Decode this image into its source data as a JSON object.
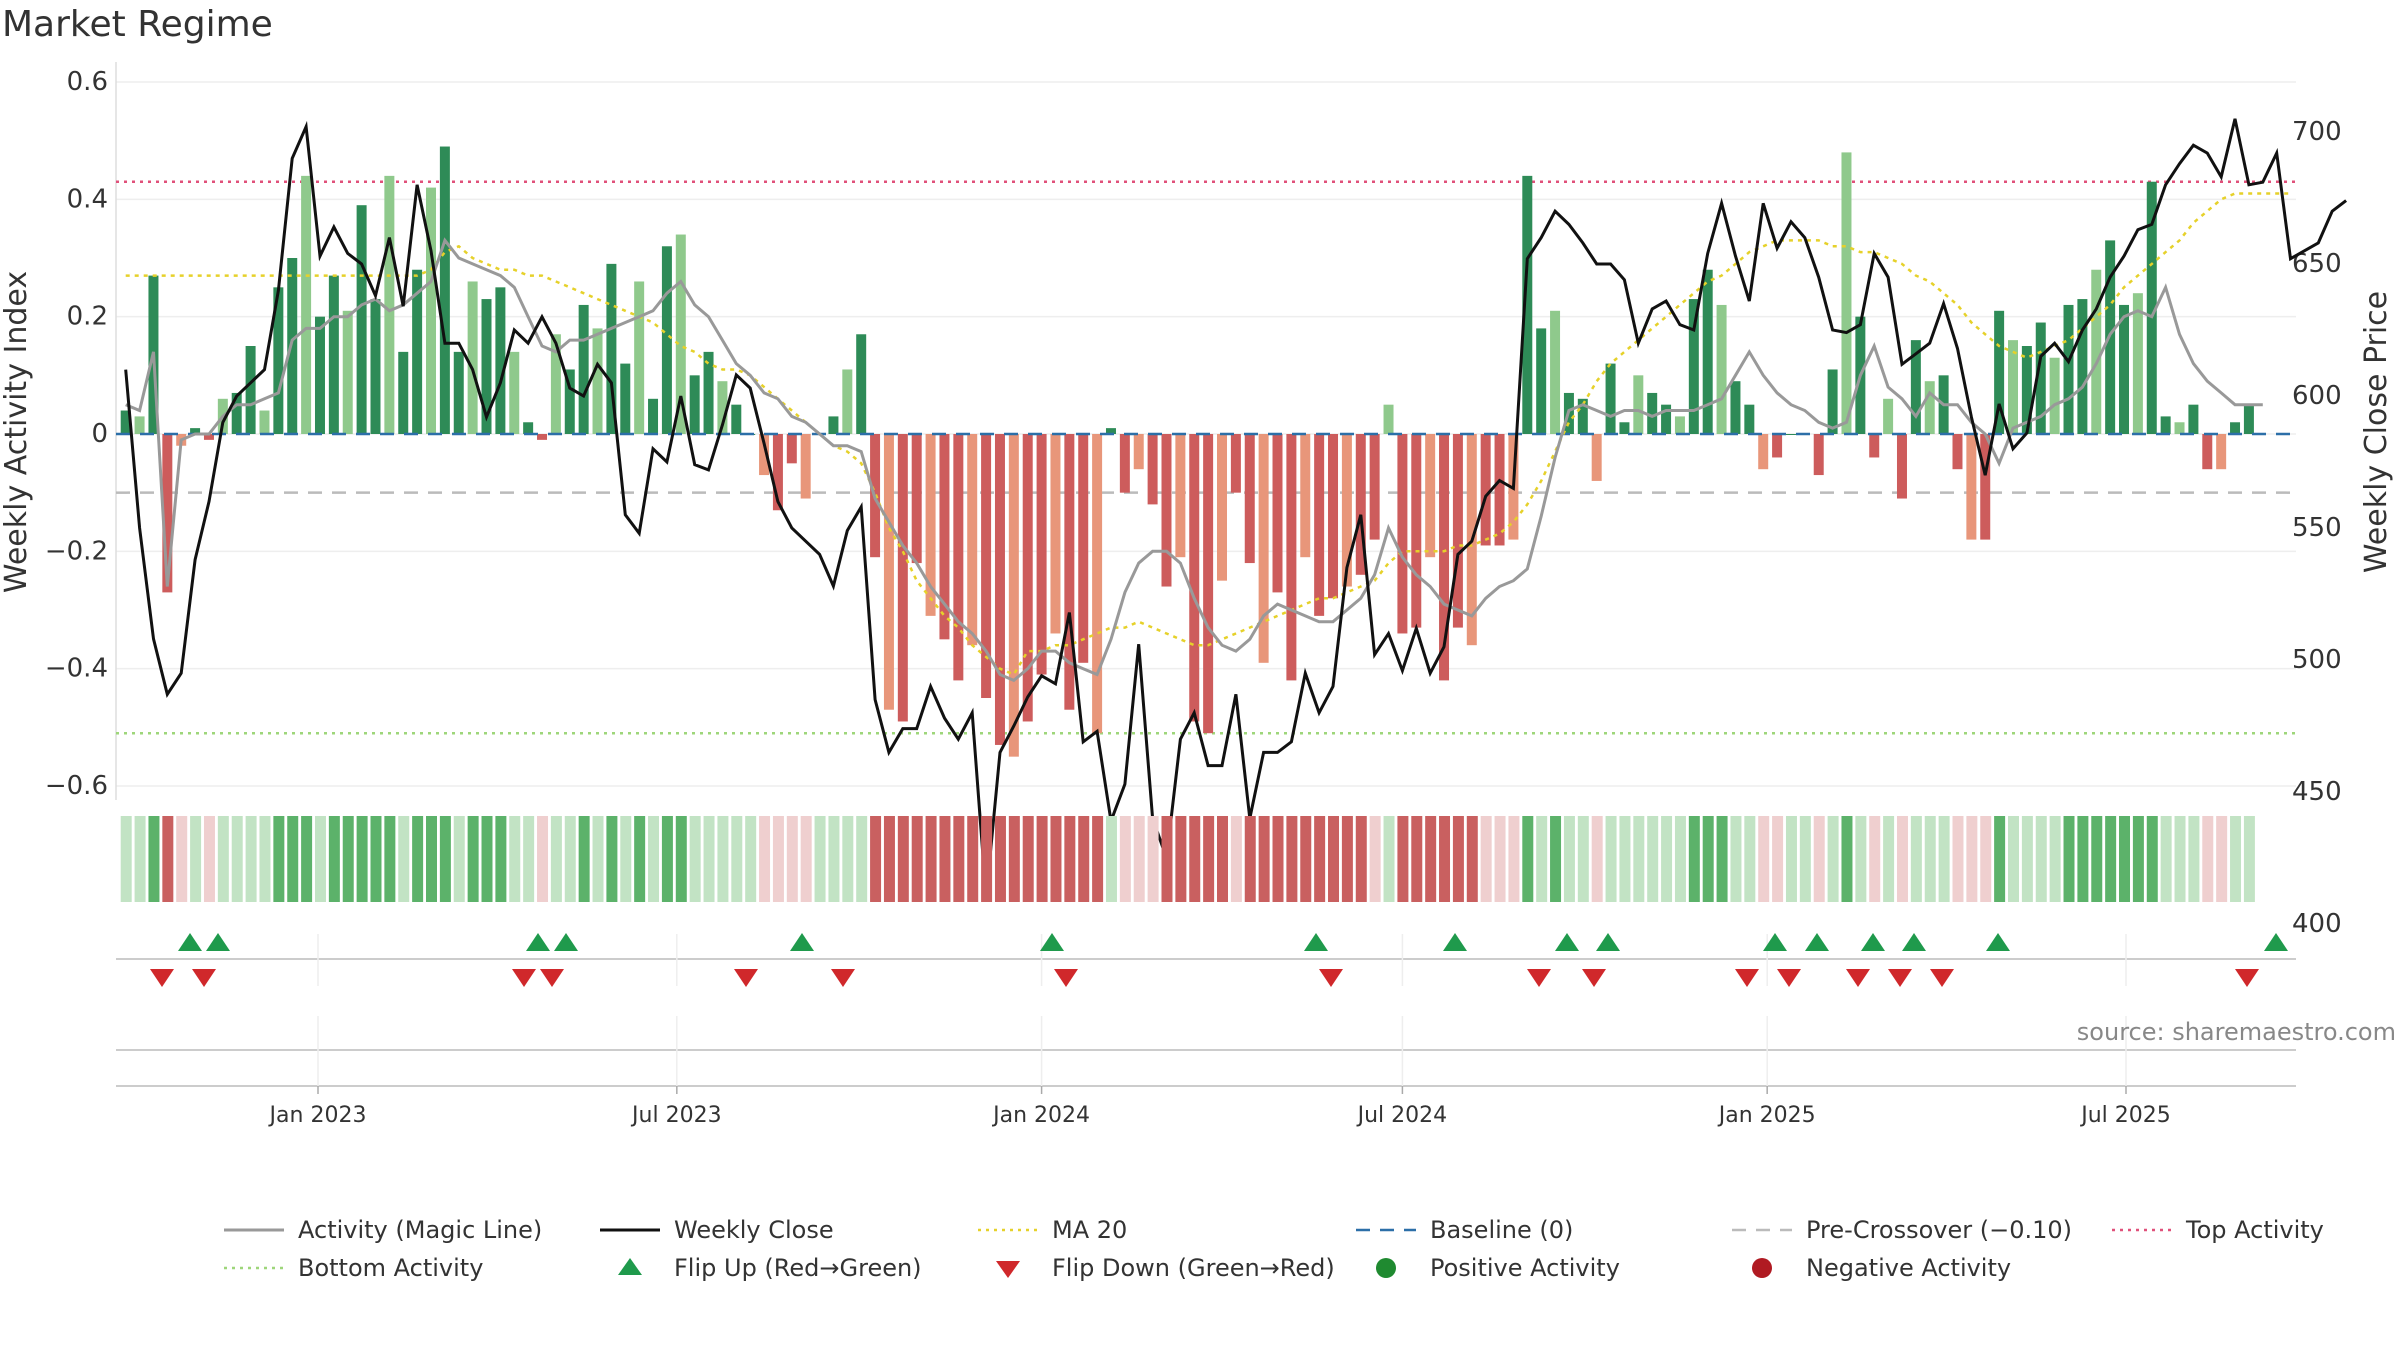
{
  "title": "Market Regime",
  "source": "source: sharemaestro.com",
  "chart_data": {
    "type": "bar",
    "ylabel_left": "Weekly Activity Index",
    "ylabel_right": "Weekly Close Price",
    "ylim_left": [
      -0.6,
      0.6
    ],
    "ylim_right": [
      390,
      740
    ],
    "yticks_left": [
      "0.6",
      "0.4",
      "0.2",
      "0",
      "−0.2",
      "−0.4",
      "−0.6"
    ],
    "yticks_right": [
      "700",
      "650",
      "600",
      "550",
      "500",
      "450",
      "400"
    ],
    "xticks": [
      "Jan 2023",
      "Jul 2023",
      "Jan 2024",
      "Jul 2024",
      "Jan 2025",
      "Jul 2025"
    ],
    "top_activity": 0.43,
    "bottom_activity": -0.51,
    "pre_crossover": -0.1,
    "baseline": 0,
    "start_week": "2022-09-26",
    "activity": [
      0.04,
      0.03,
      0.27,
      -0.27,
      -0.02,
      0.01,
      -0.01,
      0.06,
      0.07,
      0.15,
      0.04,
      0.25,
      0.3,
      0.44,
      0.2,
      0.27,
      0.21,
      0.39,
      0.23,
      0.44,
      0.14,
      0.28,
      0.42,
      0.49,
      0.14,
      0.26,
      0.23,
      0.25,
      0.14,
      0.02,
      -0.01,
      0.17,
      0.11,
      0.22,
      0.18,
      0.29,
      0.12,
      0.26,
      0.06,
      0.32,
      0.34,
      0.1,
      0.14,
      0.09,
      0.05,
      0.0,
      -0.07,
      -0.13,
      -0.05,
      -0.11,
      0.0,
      0.03,
      0.11,
      0.17,
      -0.21,
      -0.47,
      -0.49,
      -0.22,
      -0.31,
      -0.35,
      -0.42,
      -0.36,
      -0.45,
      -0.53,
      -0.55,
      -0.49,
      -0.41,
      -0.34,
      -0.47,
      -0.39,
      -0.51,
      0.01,
      -0.1,
      -0.06,
      -0.12,
      -0.26,
      -0.21,
      -0.49,
      -0.51,
      -0.25,
      -0.1,
      -0.22,
      -0.39,
      -0.27,
      -0.42,
      -0.21,
      -0.31,
      -0.28,
      -0.26,
      -0.24,
      -0.18,
      0.05,
      -0.34,
      -0.33,
      -0.21,
      -0.42,
      -0.33,
      -0.36,
      -0.19,
      -0.19,
      -0.18,
      0.44,
      0.18,
      0.21,
      0.07,
      0.06,
      -0.08,
      0.12,
      0.02,
      0.1,
      0.07,
      0.05,
      0.03,
      0.23,
      0.28,
      0.22,
      0.09,
      0.05,
      -0.06,
      -0.04,
      0.0,
      0.0,
      -0.07,
      0.11,
      0.48,
      0.2,
      -0.04,
      0.06,
      -0.11,
      0.16,
      0.09,
      0.1,
      -0.06,
      -0.18,
      -0.18,
      0.21,
      0.16,
      0.15,
      0.19,
      0.13,
      0.22,
      0.23,
      0.28,
      0.33,
      0.22,
      0.24,
      0.43,
      0.03,
      0.02,
      0.05,
      -0.06,
      -0.06,
      0.02,
      0.05
    ],
    "magic_line": [
      0.05,
      0.04,
      0.14,
      -0.26,
      -0.01,
      0.0,
      0.0,
      0.03,
      0.05,
      0.05,
      0.06,
      0.07,
      0.16,
      0.18,
      0.18,
      0.2,
      0.2,
      0.22,
      0.23,
      0.21,
      0.22,
      0.24,
      0.26,
      0.33,
      0.3,
      0.29,
      0.28,
      0.27,
      0.25,
      0.2,
      0.15,
      0.14,
      0.16,
      0.16,
      0.17,
      0.18,
      0.19,
      0.2,
      0.21,
      0.24,
      0.26,
      0.22,
      0.2,
      0.16,
      0.12,
      0.1,
      0.07,
      0.06,
      0.03,
      0.02,
      0.0,
      -0.02,
      -0.02,
      -0.03,
      -0.11,
      -0.15,
      -0.19,
      -0.22,
      -0.26,
      -0.29,
      -0.32,
      -0.34,
      -0.37,
      -0.41,
      -0.42,
      -0.4,
      -0.37,
      -0.37,
      -0.39,
      -0.4,
      -0.41,
      -0.35,
      -0.27,
      -0.22,
      -0.2,
      -0.2,
      -0.22,
      -0.28,
      -0.33,
      -0.36,
      -0.37,
      -0.35,
      -0.31,
      -0.29,
      -0.3,
      -0.31,
      -0.32,
      -0.32,
      -0.3,
      -0.28,
      -0.24,
      -0.16,
      -0.21,
      -0.24,
      -0.26,
      -0.29,
      -0.3,
      -0.31,
      -0.28,
      -0.26,
      -0.25,
      -0.23,
      -0.14,
      -0.04,
      0.04,
      0.05,
      0.04,
      0.03,
      0.04,
      0.04,
      0.03,
      0.04,
      0.04,
      0.04,
      0.05,
      0.06,
      0.1,
      0.14,
      0.1,
      0.07,
      0.05,
      0.04,
      0.02,
      0.01,
      0.02,
      0.1,
      0.15,
      0.08,
      0.06,
      0.03,
      0.07,
      0.05,
      0.05,
      0.02,
      0.0,
      -0.05,
      0.01,
      0.02,
      0.03,
      0.05,
      0.06,
      0.08,
      0.12,
      0.17,
      0.2,
      0.21,
      0.2,
      0.25,
      0.17,
      0.12,
      0.09,
      0.07,
      0.05,
      0.05,
      0.05
    ],
    "ma20": [
      0.27,
      0.27,
      0.27,
      0.27,
      0.27,
      0.27,
      0.27,
      0.27,
      0.27,
      0.27,
      0.27,
      0.27,
      0.27,
      0.27,
      0.27,
      0.27,
      0.27,
      0.27,
      0.27,
      0.27,
      0.27,
      0.27,
      0.28,
      0.31,
      0.32,
      0.3,
      0.29,
      0.28,
      0.28,
      0.27,
      0.27,
      0.26,
      0.25,
      0.24,
      0.23,
      0.22,
      0.21,
      0.2,
      0.19,
      0.17,
      0.15,
      0.14,
      0.12,
      0.11,
      0.11,
      0.1,
      0.08,
      0.06,
      0.04,
      0.02,
      0.0,
      -0.02,
      -0.03,
      -0.05,
      -0.1,
      -0.16,
      -0.2,
      -0.25,
      -0.28,
      -0.31,
      -0.33,
      -0.36,
      -0.38,
      -0.4,
      -0.41,
      -0.37,
      -0.37,
      -0.36,
      -0.36,
      -0.35,
      -0.34,
      -0.33,
      -0.33,
      -0.32,
      -0.33,
      -0.34,
      -0.35,
      -0.36,
      -0.36,
      -0.35,
      -0.34,
      -0.33,
      -0.32,
      -0.31,
      -0.3,
      -0.29,
      -0.28,
      -0.28,
      -0.27,
      -0.26,
      -0.25,
      -0.22,
      -0.2,
      -0.2,
      -0.2,
      -0.2,
      -0.19,
      -0.19,
      -0.18,
      -0.17,
      -0.15,
      -0.12,
      -0.08,
      -0.03,
      0.02,
      0.05,
      0.09,
      0.12,
      0.14,
      0.16,
      0.18,
      0.2,
      0.22,
      0.24,
      0.26,
      0.27,
      0.29,
      0.31,
      0.32,
      0.33,
      0.33,
      0.33,
      0.33,
      0.32,
      0.32,
      0.31,
      0.31,
      0.3,
      0.29,
      0.27,
      0.26,
      0.24,
      0.22,
      0.19,
      0.17,
      0.15,
      0.14,
      0.13,
      0.14,
      0.15,
      0.16,
      0.18,
      0.2,
      0.22,
      0.25,
      0.27,
      0.29,
      0.31,
      0.33,
      0.36,
      0.38,
      0.4,
      0.41,
      0.41,
      0.41,
      0.41,
      0.41
    ],
    "weekly_close": [
      610,
      550,
      508,
      487,
      495,
      538,
      560,
      590,
      600,
      605,
      610,
      640,
      690,
      702,
      653,
      664,
      654,
      650,
      638,
      660,
      634,
      680,
      655,
      620,
      620,
      610,
      592,
      605,
      625,
      620,
      630,
      620,
      603,
      600,
      612,
      605,
      555,
      548,
      580,
      575,
      600,
      574,
      572,
      589,
      608,
      603,
      582,
      560,
      550,
      545,
      540,
      528,
      549,
      558,
      485,
      465,
      474,
      474,
      490,
      478,
      470,
      480,
      410,
      465,
      475,
      486,
      494,
      491,
      518,
      469,
      473,
      439,
      453,
      506,
      440,
      425,
      470,
      480,
      460,
      460,
      487,
      440,
      465,
      465,
      469,
      495,
      480,
      490,
      535,
      555,
      502,
      510,
      496,
      512,
      495,
      505,
      540,
      545,
      562,
      568,
      565,
      652,
      660,
      670,
      665,
      658,
      650,
      650,
      644,
      620,
      633,
      636,
      627,
      625,
      654,
      673,
      653,
      636,
      673,
      656,
      666,
      660,
      645,
      625,
      624,
      627,
      654,
      645,
      612,
      616,
      620,
      635,
      618,
      592,
      570,
      597,
      580,
      586,
      615,
      620,
      613,
      625,
      633,
      645,
      653,
      663,
      665,
      680,
      688,
      695,
      692,
      683,
      705,
      680,
      681,
      692,
      652,
      655,
      658,
      670,
      674
    ],
    "flip_up_weeks": [
      2,
      3,
      20,
      21,
      31,
      43,
      60,
      73,
      79,
      84,
      87,
      92,
      93,
      96,
      97,
      102
    ],
    "flip_down_weeks": [
      1,
      2,
      19,
      20,
      29,
      34,
      44,
      59,
      71,
      82,
      84,
      91,
      93,
      96,
      98,
      100,
      101,
      111
    ],
    "legend": [
      {
        "label": "Activity (Magic Line)",
        "symbol": "line",
        "color": "#999999"
      },
      {
        "label": "Weekly Close",
        "symbol": "line",
        "color": "#111111"
      },
      {
        "label": "MA 20",
        "symbol": "dotted",
        "color": "#e6d12a"
      },
      {
        "label": "Baseline (0)",
        "symbol": "dashed",
        "color": "#2c6fa8"
      },
      {
        "label": "Pre-Crossover (−0.10)",
        "symbol": "dashed",
        "color": "#bbbbbb"
      },
      {
        "label": "Top Activity",
        "symbol": "dotted",
        "color": "#e0507a"
      },
      {
        "label": "Bottom Activity",
        "symbol": "dotted",
        "color": "#9ed67a"
      },
      {
        "label": "Flip Up (Red→Green)",
        "symbol": "triangle-up",
        "color": "#1f9a4c"
      },
      {
        "label": "Flip Down (Green→Red)",
        "symbol": "triangle-down",
        "color": "#d0282b"
      },
      {
        "label": "Positive Activity",
        "symbol": "circle",
        "color": "#1f8a30"
      },
      {
        "label": "Negative Activity",
        "symbol": "circle",
        "color": "#b01a22"
      }
    ],
    "colors": {
      "pos_strong": "#2e8b57",
      "pos_light": "#8fc98c",
      "neg_strong": "#cd5c5c",
      "neg_light": "#e8967a",
      "strip_pos": "#5cb26a",
      "strip_pos_light": "#c2e3c4",
      "strip_neg": "#c96060",
      "strip_neg_light": "#efcfcf"
    }
  }
}
